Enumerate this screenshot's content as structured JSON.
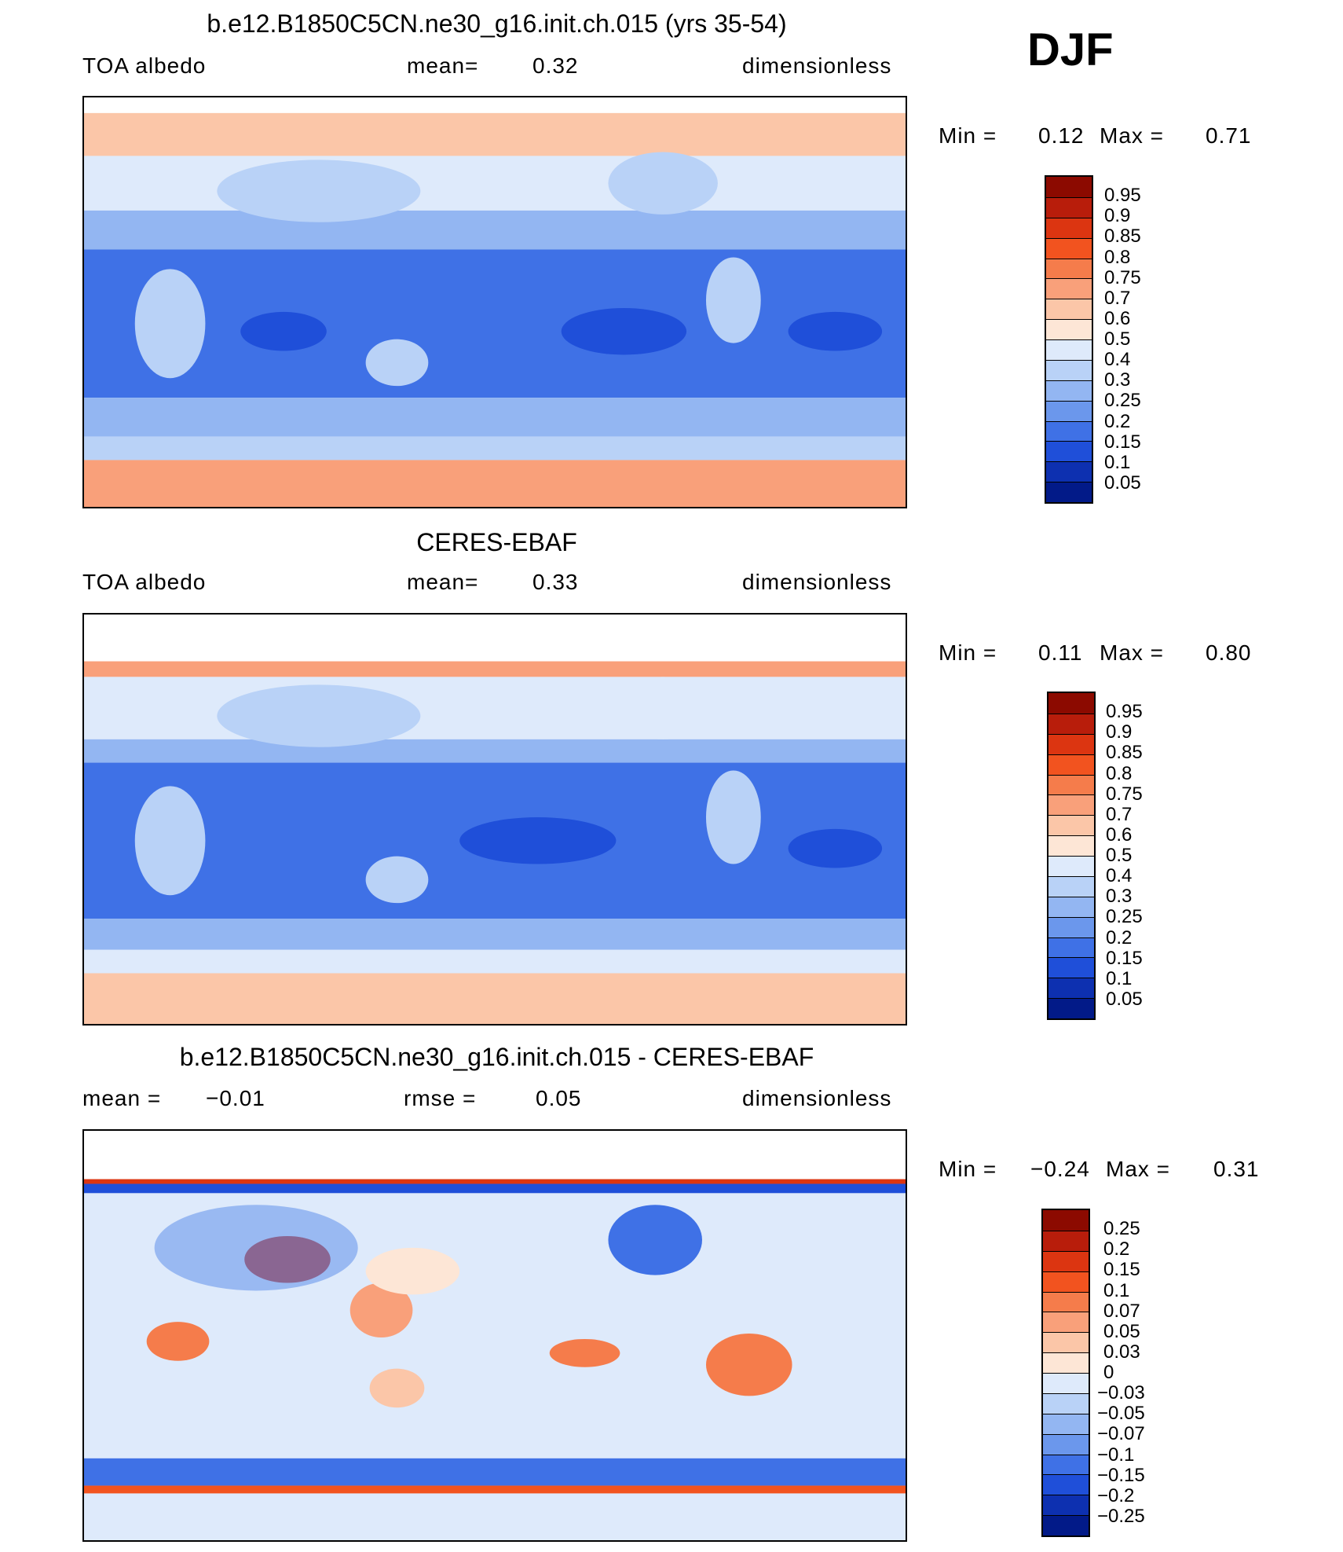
{
  "season": "DJF",
  "chart_data": [
    {
      "type": "heatmap",
      "title": "b.e12.B1850C5CN.ne30_g16.init.ch.015 (yrs 35-54)",
      "left_label": "TOA albedo",
      "center_label": "mean=",
      "center_value": "0.32",
      "right_label": "dimensionless",
      "min_label": "Min =",
      "min_value": "0.12",
      "max_label": "Max =",
      "max_value": "0.71",
      "min": 0.12,
      "max": 0.71,
      "mean": 0.32,
      "levels": [
        "0.95",
        "0.9",
        "0.85",
        "0.8",
        "0.75",
        "0.7",
        "0.6",
        "0.5",
        "0.4",
        "0.3",
        "0.25",
        "0.2",
        "0.15",
        "0.1",
        "0.05"
      ],
      "colors": [
        "#8c0a00",
        "#b81d0b",
        "#dc3511",
        "#f2531f",
        "#f57c4b",
        "#f9a07a",
        "#fbc6a8",
        "#fde6d6",
        "#deeafb",
        "#b9d2f7",
        "#93b6f2",
        "#6b97ec",
        "#3f71e6",
        "#1f4fd9",
        "#0d30b0",
        "#021a88"
      ]
    },
    {
      "type": "heatmap",
      "title": "CERES-EBAF",
      "left_label": "TOA albedo",
      "center_label": "mean=",
      "center_value": "0.33",
      "right_label": "dimensionless",
      "min_label": "Min =",
      "min_value": "0.11",
      "max_label": "Max =",
      "max_value": "0.80",
      "min": 0.11,
      "max": 0.8,
      "mean": 0.33,
      "levels": [
        "0.95",
        "0.9",
        "0.85",
        "0.8",
        "0.75",
        "0.7",
        "0.6",
        "0.5",
        "0.4",
        "0.3",
        "0.25",
        "0.2",
        "0.15",
        "0.1",
        "0.05"
      ],
      "colors": [
        "#8c0a00",
        "#b81d0b",
        "#dc3511",
        "#f2531f",
        "#f57c4b",
        "#f9a07a",
        "#fbc6a8",
        "#fde6d6",
        "#deeafb",
        "#b9d2f7",
        "#93b6f2",
        "#6b97ec",
        "#3f71e6",
        "#1f4fd9",
        "#0d30b0",
        "#021a88"
      ]
    },
    {
      "type": "heatmap",
      "title": "b.e12.B1850C5CN.ne30_g16.init.ch.015 - CERES-EBAF",
      "left_label": "mean =",
      "left_value": "−0.01",
      "center_label": "rmse =",
      "center_value": "0.05",
      "right_label": "dimensionless",
      "min_label": "Min =",
      "min_value": "−0.24",
      "max_label": "Max =",
      "max_value": "0.31",
      "min": -0.24,
      "max": 0.31,
      "mean": -0.01,
      "rmse": 0.05,
      "levels": [
        "0.25",
        "0.2",
        "0.15",
        "0.1",
        "0.07",
        "0.05",
        "0.03",
        "0",
        "−0.03",
        "−0.05",
        "−0.07",
        "−0.1",
        "−0.15",
        "−0.2",
        "−0.25"
      ],
      "colors": [
        "#8c0a00",
        "#b81d0b",
        "#dc3511",
        "#f2531f",
        "#f57c4b",
        "#f9a07a",
        "#fbc6a8",
        "#fde6d6",
        "#deeafb",
        "#b9d2f7",
        "#93b6f2",
        "#6b97ec",
        "#3f71e6",
        "#1f4fd9",
        "#0d30b0",
        "#021a88"
      ]
    }
  ]
}
